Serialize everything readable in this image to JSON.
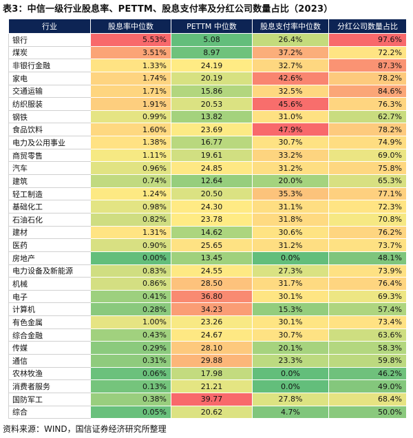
{
  "title": "表3：中信一级行业股息率、PETTM、股息支付率及分红公司数量占比（2023）",
  "headers": [
    "行业",
    "股息率中位数",
    "PETTM 中位数",
    "股息支付率中位数",
    "分红公司数量占比"
  ],
  "rows": [
    {
      "name": "银行",
      "dy": "5.53%",
      "pe": "5.08",
      "payout": "26.4%",
      "ratio": "97.6%",
      "colors": [
        "#f8696b",
        "#63be7b",
        "#c4db7c",
        "#f8696b"
      ]
    },
    {
      "name": "煤炭",
      "dy": "3.51%",
      "pe": "8.97",
      "payout": "37.2%",
      "ratio": "72.2%",
      "colors": [
        "#fba476",
        "#6fc27c",
        "#fbae7a",
        "#ffe483"
      ]
    },
    {
      "name": "非银行金融",
      "dy": "1.33%",
      "pe": "24.19",
      "payout": "32.7%",
      "ratio": "87.3%",
      "colors": [
        "#ffe383",
        "#ffeb84",
        "#fed780",
        "#fa9373"
      ]
    },
    {
      "name": "家电",
      "dy": "1.74%",
      "pe": "20.19",
      "payout": "42.6%",
      "ratio": "78.2%",
      "colors": [
        "#fed480",
        "#d7e181",
        "#f98570",
        "#fdca7d"
      ]
    },
    {
      "name": "交通运输",
      "dy": "1.71%",
      "pe": "15.86",
      "payout": "32.5%",
      "ratio": "84.6%",
      "colors": [
        "#fed57f",
        "#b2d67e",
        "#fed880",
        "#fba677"
      ]
    },
    {
      "name": "纺织服装",
      "dy": "1.91%",
      "pe": "20.53",
      "payout": "45.6%",
      "ratio": "76.3%",
      "colors": [
        "#fdce7e",
        "#dbe282",
        "#f86e6c",
        "#fed580"
      ]
    },
    {
      "name": "钢铁",
      "dy": "0.99%",
      "pe": "13.82",
      "payout": "31.0%",
      "ratio": "62.7%",
      "colors": [
        "#e5e483",
        "#a4d27d",
        "#fee182",
        "#c9dc7f"
      ]
    },
    {
      "name": "食品饮料",
      "dy": "1.60%",
      "pe": "23.69",
      "payout": "47.9%",
      "ratio": "78.2%",
      "colors": [
        "#fed880",
        "#fdea84",
        "#f8696b",
        "#fdca7d"
      ]
    },
    {
      "name": "电力及公用事业",
      "dy": "1.38%",
      "pe": "16.77",
      "payout": "30.7%",
      "ratio": "74.9%",
      "colors": [
        "#ffe283",
        "#b9d87e",
        "#fee283",
        "#fedd81"
      ]
    },
    {
      "name": "商贸零售",
      "dy": "1.11%",
      "pe": "19.61",
      "payout": "33.2%",
      "ratio": "69.0%",
      "colors": [
        "#f6e983",
        "#d1df81",
        "#fdd47f",
        "#ebe583"
      ]
    },
    {
      "name": "汽车",
      "dy": "0.96%",
      "pe": "24.85",
      "payout": "31.2%",
      "ratio": "75.8%",
      "colors": [
        "#e1e382",
        "#fee884",
        "#fede82",
        "#fed780"
      ]
    },
    {
      "name": "建筑",
      "dy": "0.74%",
      "pe": "12.64",
      "payout": "20.0%",
      "ratio": "65.3%",
      "colors": [
        "#c1da80",
        "#96ce7d",
        "#a5d37e",
        "#d8e081"
      ]
    },
    {
      "name": "轻工制造",
      "dy": "1.24%",
      "pe": "20.50",
      "payout": "35.3%",
      "ratio": "77.1%",
      "colors": [
        "#fde983",
        "#dbe282",
        "#fcc37b",
        "#fed07f"
      ]
    },
    {
      "name": "基础化工",
      "dy": "0.98%",
      "pe": "24.30",
      "payout": "31.1%",
      "ratio": "72.3%",
      "colors": [
        "#e3e483",
        "#ffea84",
        "#fede82",
        "#ffe483"
      ]
    },
    {
      "name": "石油石化",
      "dy": "0.82%",
      "pe": "23.78",
      "payout": "31.8%",
      "ratio": "70.8%",
      "colors": [
        "#cfdd81",
        "#ffeb84",
        "#feda81",
        "#f6e883"
      ]
    },
    {
      "name": "建材",
      "dy": "1.31%",
      "pe": "14.62",
      "payout": "30.6%",
      "ratio": "76.2%",
      "colors": [
        "#ffe483",
        "#acd57e",
        "#fee383",
        "#fed580"
      ]
    },
    {
      "name": "医药",
      "dy": "0.90%",
      "pe": "25.65",
      "payout": "31.2%",
      "ratio": "73.7%",
      "colors": [
        "#d8e082",
        "#fee283",
        "#fede82",
        "#fee183"
      ]
    },
    {
      "name": "房地产",
      "dy": "0.00%",
      "pe": "13.45",
      "payout": "0.0%",
      "ratio": "48.1%",
      "colors": [
        "#63be7b",
        "#9fd17d",
        "#63be7b",
        "#7ec57c"
      ]
    },
    {
      "name": "电力设备及新能源",
      "dy": "0.83%",
      "pe": "24.55",
      "payout": "27.3%",
      "ratio": "73.9%",
      "colors": [
        "#d0de81",
        "#fee983",
        "#dae282",
        "#fee183"
      ]
    },
    {
      "name": "机械",
      "dy": "0.86%",
      "pe": "28.50",
      "payout": "31.7%",
      "ratio": "76.4%",
      "colors": [
        "#d4df82",
        "#fdc27c",
        "#feda81",
        "#fed580"
      ]
    },
    {
      "name": "电子",
      "dy": "0.41%",
      "pe": "36.80",
      "payout": "30.1%",
      "ratio": "69.3%",
      "colors": [
        "#9dd07e",
        "#f98a71",
        "#fee583",
        "#ede683"
      ]
    },
    {
      "name": "计算机",
      "dy": "0.28%",
      "pe": "34.23",
      "payout": "15.3%",
      "ratio": "57.4%",
      "colors": [
        "#8ac97d",
        "#fa9d75",
        "#93cd7d",
        "#aed57f"
      ]
    },
    {
      "name": "有色金属",
      "dy": "1.00%",
      "pe": "23.26",
      "payout": "30.1%",
      "ratio": "73.4%",
      "colors": [
        "#e6e483",
        "#f8e984",
        "#fee583",
        "#ffe283"
      ]
    },
    {
      "name": "综合金融",
      "dy": "0.43%",
      "pe": "24.67",
      "payout": "30.7%",
      "ratio": "63.6%",
      "colors": [
        "#a1d17e",
        "#fee883",
        "#fee283",
        "#cede80"
      ]
    },
    {
      "name": "传媒",
      "dy": "0.29%",
      "pe": "28.10",
      "payout": "20.1%",
      "ratio": "58.3%",
      "colors": [
        "#8bca7d",
        "#fdc97d",
        "#a6d37e",
        "#b3d77f"
      ]
    },
    {
      "name": "通信",
      "dy": "0.31%",
      "pe": "29.88",
      "payout": "23.3%",
      "ratio": "59.8%",
      "colors": [
        "#8fcb7d",
        "#fcb679",
        "#bcda80",
        "#bcd97f"
      ]
    },
    {
      "name": "农林牧渔",
      "dy": "0.06%",
      "pe": "17.98",
      "payout": "0.0%",
      "ratio": "46.2%",
      "colors": [
        "#6bc17c",
        "#c3db7f",
        "#63be7b",
        "#6fc17c"
      ]
    },
    {
      "name": "消费者服务",
      "dy": "0.13%",
      "pe": "21.21",
      "payout": "0.0%",
      "ratio": "49.0%",
      "colors": [
        "#75c47c",
        "#e4e582",
        "#63be7b",
        "#84c77c"
      ]
    },
    {
      "name": "国防军工",
      "dy": "0.38%",
      "pe": "39.77",
      "payout": "27.8%",
      "ratio": "68.4%",
      "colors": [
        "#99ce7e",
        "#f8696b",
        "#dde382",
        "#e6e382"
      ]
    },
    {
      "name": "综合",
      "dy": "0.05%",
      "pe": "20.62",
      "payout": "4.7%",
      "ratio": "50.0%",
      "colors": [
        "#69c07c",
        "#dce282",
        "#80c67c",
        "#8ac97d"
      ]
    }
  ],
  "source": "资料来源：WIND，国信证券经济研究所整理"
}
